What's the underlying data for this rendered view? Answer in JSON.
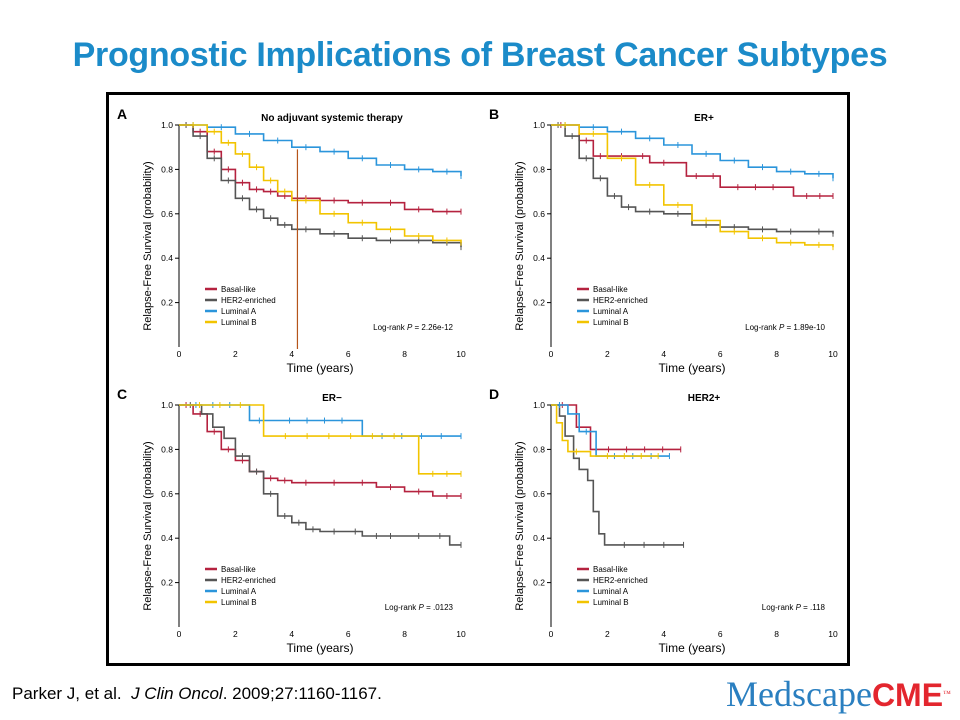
{
  "slide": {
    "title": "Prognostic Implications of Breast Cancer Subtypes",
    "citation": {
      "authors": "Parker J, et al.",
      "journal": "J Clin Oncol",
      "rest": ". 2009;27:1160-1167."
    },
    "logo": {
      "part1": "Medscape",
      "part2": "CME",
      "tm": "™"
    }
  },
  "colors": {
    "Basal-like": "#b5223f",
    "HER2-enriched": "#555555",
    "Luminal A": "#2b95db",
    "Luminal B": "#f2c400",
    "title": "#1b8bc9",
    "marker_line": "#b5541a"
  },
  "chart_data": [
    {
      "type": "line",
      "panel_letter": "A",
      "title": "No adjuvant systemic therapy",
      "xlabel": "Time (years)",
      "ylabel": "Relapse-Free Survival (probability)",
      "xlim": [
        0,
        10
      ],
      "ylim": [
        0,
        1.0
      ],
      "xticks": [
        0,
        2,
        4,
        6,
        8,
        10
      ],
      "yticks": [
        0.2,
        0.4,
        0.6,
        0.8,
        1.0
      ],
      "legend": [
        "Basal-like",
        "HER2-enriched",
        "Luminal A",
        "Luminal B"
      ],
      "legend_position": "bottom-left",
      "logrank": {
        "prefix": "Log-rank ",
        "p_label": "P",
        "value": " = 2.26e-12"
      },
      "vline_x": 4.2,
      "series": [
        {
          "name": "Basal-like",
          "points": [
            [
              0,
              1.0
            ],
            [
              0.5,
              0.97
            ],
            [
              1,
              0.88
            ],
            [
              1.5,
              0.8
            ],
            [
              2,
              0.74
            ],
            [
              2.5,
              0.71
            ],
            [
              3,
              0.7
            ],
            [
              3.5,
              0.68
            ],
            [
              4,
              0.67
            ],
            [
              5,
              0.66
            ],
            [
              6,
              0.65
            ],
            [
              7,
              0.65
            ],
            [
              8,
              0.62
            ],
            [
              9,
              0.61
            ],
            [
              10,
              0.61
            ]
          ]
        },
        {
          "name": "HER2-enriched",
          "points": [
            [
              0,
              1.0
            ],
            [
              0.5,
              0.95
            ],
            [
              1,
              0.85
            ],
            [
              1.5,
              0.75
            ],
            [
              2,
              0.67
            ],
            [
              2.5,
              0.62
            ],
            [
              3,
              0.58
            ],
            [
              3.5,
              0.55
            ],
            [
              4,
              0.53
            ],
            [
              5,
              0.51
            ],
            [
              6,
              0.49
            ],
            [
              7,
              0.48
            ],
            [
              8,
              0.48
            ],
            [
              9,
              0.47
            ],
            [
              10,
              0.45
            ]
          ]
        },
        {
          "name": "Luminal A",
          "points": [
            [
              0,
              1.0
            ],
            [
              1,
              0.99
            ],
            [
              2,
              0.96
            ],
            [
              3,
              0.93
            ],
            [
              4,
              0.9
            ],
            [
              5,
              0.88
            ],
            [
              6,
              0.85
            ],
            [
              7,
              0.82
            ],
            [
              8,
              0.8
            ],
            [
              9,
              0.79
            ],
            [
              10,
              0.77
            ]
          ]
        },
        {
          "name": "Luminal B",
          "points": [
            [
              0,
              1.0
            ],
            [
              1,
              0.97
            ],
            [
              1.5,
              0.92
            ],
            [
              2,
              0.87
            ],
            [
              2.5,
              0.81
            ],
            [
              3,
              0.75
            ],
            [
              3.5,
              0.7
            ],
            [
              4,
              0.66
            ],
            [
              5,
              0.6
            ],
            [
              6,
              0.56
            ],
            [
              7,
              0.53
            ],
            [
              8,
              0.5
            ],
            [
              9,
              0.48
            ],
            [
              10,
              0.47
            ]
          ]
        }
      ]
    },
    {
      "type": "line",
      "panel_letter": "B",
      "title": "ER+",
      "xlabel": "Time (years)",
      "ylabel": "Relapse-Free Survival (probability)",
      "xlim": [
        0,
        10
      ],
      "ylim": [
        0,
        1.0
      ],
      "xticks": [
        0,
        2,
        4,
        6,
        8,
        10
      ],
      "yticks": [
        0.2,
        0.4,
        0.6,
        0.8,
        1.0
      ],
      "legend": [
        "Basal-like",
        "HER2-enriched",
        "Luminal A",
        "Luminal B"
      ],
      "legend_position": "bottom-left",
      "logrank": {
        "prefix": "Log-rank ",
        "p_label": "P",
        "value": " = 1.89e-10"
      },
      "series": [
        {
          "name": "Basal-like",
          "points": [
            [
              0,
              1.0
            ],
            [
              0.7,
              1.0
            ],
            [
              1,
              0.93
            ],
            [
              1.5,
              0.86
            ],
            [
              2,
              0.86
            ],
            [
              3,
              0.86
            ],
            [
              3.5,
              0.83
            ],
            [
              4.5,
              0.83
            ],
            [
              4.8,
              0.77
            ],
            [
              5.5,
              0.77
            ],
            [
              6,
              0.72
            ],
            [
              8.5,
              0.72
            ],
            [
              8.6,
              0.68
            ],
            [
              10,
              0.68
            ]
          ]
        },
        {
          "name": "HER2-enriched",
          "points": [
            [
              0,
              1.0
            ],
            [
              0.5,
              0.95
            ],
            [
              1,
              0.85
            ],
            [
              1.5,
              0.76
            ],
            [
              2,
              0.68
            ],
            [
              2.5,
              0.63
            ],
            [
              3,
              0.61
            ],
            [
              4,
              0.6
            ],
            [
              5,
              0.55
            ],
            [
              6,
              0.54
            ],
            [
              7,
              0.53
            ],
            [
              8,
              0.52
            ],
            [
              9,
              0.52
            ],
            [
              10,
              0.51
            ]
          ]
        },
        {
          "name": "Luminal A",
          "points": [
            [
              0,
              1.0
            ],
            [
              1,
              0.99
            ],
            [
              2,
              0.97
            ],
            [
              3,
              0.94
            ],
            [
              4,
              0.91
            ],
            [
              5,
              0.87
            ],
            [
              6,
              0.84
            ],
            [
              7,
              0.81
            ],
            [
              8,
              0.79
            ],
            [
              9,
              0.78
            ],
            [
              10,
              0.76
            ]
          ]
        },
        {
          "name": "Luminal B",
          "points": [
            [
              0,
              1.0
            ],
            [
              1,
              0.96
            ],
            [
              2,
              0.85
            ],
            [
              3,
              0.73
            ],
            [
              4,
              0.64
            ],
            [
              5,
              0.57
            ],
            [
              6,
              0.52
            ],
            [
              7,
              0.49
            ],
            [
              8,
              0.47
            ],
            [
              9,
              0.46
            ],
            [
              10,
              0.45
            ]
          ]
        }
      ]
    },
    {
      "type": "line",
      "panel_letter": "C",
      "title": "ER−",
      "xlabel": "Time (years)",
      "ylabel": "Relapse-Free Survival (probability)",
      "xlim": [
        0,
        10
      ],
      "ylim": [
        0,
        1.0
      ],
      "xticks": [
        0,
        2,
        4,
        6,
        8,
        10
      ],
      "yticks": [
        0.2,
        0.4,
        0.6,
        0.8,
        1.0
      ],
      "legend": [
        "Basal-like",
        "HER2-enriched",
        "Luminal A",
        "Luminal B"
      ],
      "legend_position": "bottom-left",
      "logrank": {
        "prefix": "Log-rank ",
        "p_label": "P",
        "value": " = .0123"
      },
      "series": [
        {
          "name": "Basal-like",
          "points": [
            [
              0,
              1.0
            ],
            [
              0.5,
              0.96
            ],
            [
              1,
              0.88
            ],
            [
              1.5,
              0.8
            ],
            [
              2,
              0.75
            ],
            [
              2.5,
              0.7
            ],
            [
              3,
              0.67
            ],
            [
              3.5,
              0.66
            ],
            [
              4,
              0.65
            ],
            [
              5,
              0.65
            ],
            [
              6,
              0.65
            ],
            [
              7,
              0.63
            ],
            [
              8,
              0.61
            ],
            [
              9,
              0.59
            ],
            [
              10,
              0.59
            ]
          ]
        },
        {
          "name": "HER2-enriched",
          "points": [
            [
              0,
              1.0
            ],
            [
              0.8,
              0.96
            ],
            [
              1.2,
              0.9
            ],
            [
              1.6,
              0.85
            ],
            [
              2,
              0.77
            ],
            [
              2.5,
              0.7
            ],
            [
              3,
              0.6
            ],
            [
              3.5,
              0.5
            ],
            [
              4,
              0.47
            ],
            [
              4.5,
              0.44
            ],
            [
              5,
              0.43
            ],
            [
              6,
              0.43
            ],
            [
              6.5,
              0.41
            ],
            [
              8,
              0.41
            ],
            [
              9,
              0.41
            ],
            [
              9.5,
              0.41
            ],
            [
              9.6,
              0.37
            ],
            [
              10,
              0.37
            ]
          ]
        },
        {
          "name": "Luminal A",
          "points": [
            [
              0,
              1.0
            ],
            [
              2.4,
              1.0
            ],
            [
              2.5,
              0.93
            ],
            [
              3.2,
              0.93
            ],
            [
              3.3,
              0.93
            ],
            [
              6.4,
              0.93
            ],
            [
              6.5,
              0.86
            ],
            [
              10,
              0.86
            ]
          ]
        },
        {
          "name": "Luminal B",
          "points": [
            [
              0,
              1.0
            ],
            [
              2.9,
              1.0
            ],
            [
              3.0,
              0.86
            ],
            [
              8.4,
              0.86
            ],
            [
              8.5,
              0.69
            ],
            [
              10,
              0.69
            ]
          ]
        }
      ]
    },
    {
      "type": "line",
      "panel_letter": "D",
      "title": "HER2+",
      "xlabel": "Time (years)",
      "ylabel": "Relapse-Free Survival (probability)",
      "xlim": [
        0,
        10
      ],
      "ylim": [
        0,
        1.0
      ],
      "xticks": [
        0,
        2,
        4,
        6,
        8,
        10
      ],
      "yticks": [
        0.2,
        0.4,
        0.6,
        0.8,
        1.0
      ],
      "legend": [
        "Basal-like",
        "HER2-enriched",
        "Luminal A",
        "Luminal B"
      ],
      "legend_position": "bottom-left",
      "logrank": {
        "prefix": "Log-rank ",
        "p_label": "P",
        "value": " = .118"
      },
      "series": [
        {
          "name": "Basal-like",
          "points": [
            [
              0,
              1.0
            ],
            [
              0.8,
              1.0
            ],
            [
              0.9,
              0.9
            ],
            [
              1.3,
              0.9
            ],
            [
              1.4,
              0.8
            ],
            [
              4.6,
              0.8
            ]
          ]
        },
        {
          "name": "HER2-enriched",
          "points": [
            [
              0,
              1.0
            ],
            [
              0.3,
              0.95
            ],
            [
              0.5,
              0.86
            ],
            [
              0.8,
              0.76
            ],
            [
              1,
              0.71
            ],
            [
              1.3,
              0.66
            ],
            [
              1.5,
              0.52
            ],
            [
              1.7,
              0.42
            ],
            [
              1.9,
              0.37
            ],
            [
              4.7,
              0.37
            ]
          ]
        },
        {
          "name": "Luminal A",
          "points": [
            [
              0,
              1.0
            ],
            [
              0.6,
              0.96
            ],
            [
              1.0,
              0.88
            ],
            [
              1.5,
              0.88
            ],
            [
              1.6,
              0.77
            ],
            [
              4.2,
              0.77
            ]
          ]
        },
        {
          "name": "Luminal B",
          "points": [
            [
              0,
              1.0
            ],
            [
              0.2,
              0.92
            ],
            [
              0.4,
              0.84
            ],
            [
              0.6,
              0.79
            ],
            [
              1.2,
              0.79
            ],
            [
              1.4,
              0.77
            ],
            [
              3.8,
              0.77
            ]
          ]
        }
      ]
    }
  ]
}
